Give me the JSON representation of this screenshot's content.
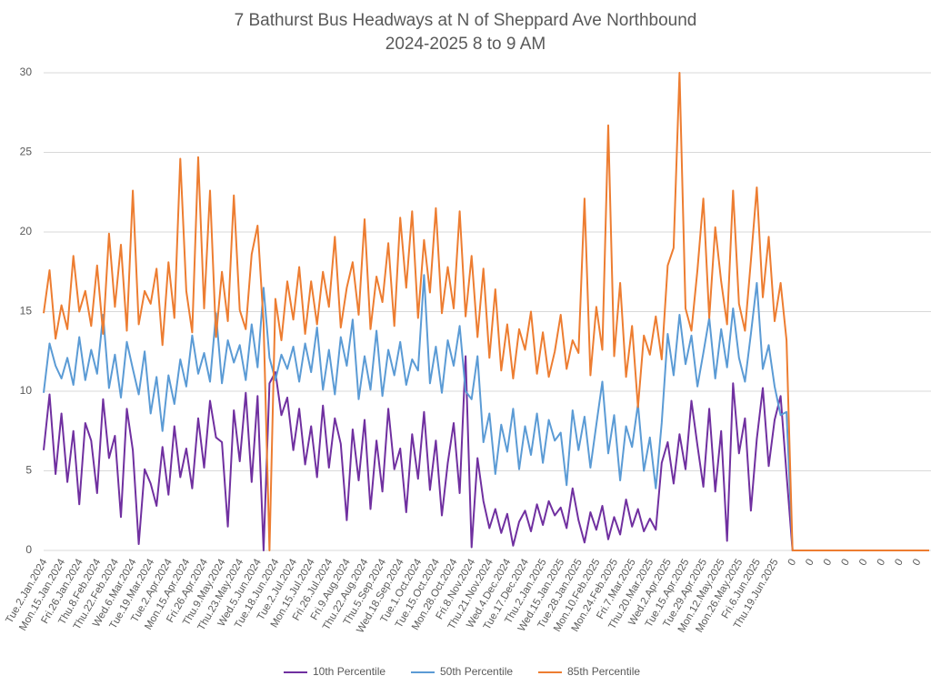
{
  "chart_data": {
    "type": "line",
    "title": "7 Bathurst Bus Headways at N of Sheppard Ave Northbound",
    "subtitle": "2024-2025 8 to 9 AM",
    "categories": [
      "Tue.2.Jan.2024",
      null,
      null,
      "Mon.15.Jan.2024",
      null,
      null,
      "Fri.26.Jan.2024",
      null,
      null,
      "Thu.8.Feb.2024",
      null,
      null,
      "Thu.22.Feb.2024",
      null,
      null,
      "Wed.6.Mar.2024",
      null,
      null,
      "Tue.19.Mar.2024",
      null,
      null,
      "Tue.2.Apr.2024",
      null,
      null,
      "Mon.15.Apr.2024",
      null,
      null,
      "Fri.26.Apr.2024",
      null,
      null,
      "Thu.9.May.2024",
      null,
      null,
      "Thu.23.May.2024",
      null,
      null,
      "Wed.5.Jun.2024",
      null,
      null,
      "Tue.18.Jun.2024",
      null,
      null,
      "Tue.2.Jul.2024",
      null,
      null,
      "Mon.15.Jul.2024",
      null,
      null,
      "Fri.26.Jul.2024",
      null,
      null,
      "Fri.9.Aug.2024",
      null,
      null,
      "Thu.22.Aug.2024",
      null,
      null,
      "Thu.5.Sep.2024",
      null,
      null,
      "Wed.18.Sep.2024",
      null,
      null,
      "Tue.1.Oct.2024",
      null,
      null,
      "Tue.15.Oct.2024",
      null,
      null,
      "Mon.28.Oct.2024",
      null,
      null,
      "Fri.8.Nov.2024",
      null,
      null,
      "Thu.21.Nov.2024",
      null,
      null,
      "Wed.4.Dec.2024",
      null,
      null,
      "Tue.17.Dec.2024",
      null,
      null,
      "Thu.2.Jan.2025",
      null,
      null,
      "Wed.15.Jan.2025",
      null,
      null,
      "Tue.28.Jan.2025",
      null,
      null,
      "Mon.10.Feb.2025",
      null,
      null,
      "Mon.24.Feb.2025",
      null,
      null,
      "Fri.7.Mar.2025",
      null,
      null,
      "Thu.20.Mar.2025",
      null,
      null,
      "Wed.2.Apr.2025",
      null,
      null,
      "Tue.15.Apr.2025",
      null,
      null,
      "Tue.29.Apr.2025",
      null,
      null,
      "Mon.12.May.2025",
      null,
      null,
      "Mon.26.May.2025",
      null,
      null,
      "Fri.6.Jun.2025",
      null,
      null,
      "Thu.19.Jun.2025",
      null,
      null,
      "0",
      null,
      null,
      "0",
      null,
      null,
      "0",
      null,
      null,
      "0",
      null,
      null,
      "0",
      null,
      null,
      "0",
      null,
      null,
      "0",
      null,
      null,
      "0",
      null,
      null
    ],
    "series": [
      {
        "name": "10th Percentile",
        "color": "#7030a0",
        "values": [
          6.3,
          9.8,
          4.8,
          8.6,
          4.3,
          7.5,
          2.9,
          8.0,
          6.9,
          3.6,
          9.5,
          5.8,
          7.2,
          2.1,
          8.9,
          6.3,
          0.4,
          5.1,
          4.2,
          2.8,
          6.5,
          3.5,
          7.8,
          4.6,
          6.4,
          3.9,
          8.3,
          5.2,
          9.4,
          7.1,
          6.8,
          1.5,
          8.8,
          5.6,
          9.9,
          4.3,
          9.7,
          0,
          10.5,
          11.2,
          8.5,
          9.6,
          6.3,
          8.9,
          5.4,
          7.8,
          4.6,
          9.1,
          5.2,
          8.3,
          6.7,
          1.9,
          7.6,
          4.4,
          8.2,
          2.6,
          6.9,
          3.7,
          8.9,
          5.1,
          6.4,
          2.4,
          7.3,
          4.5,
          8.7,
          3.8,
          6.9,
          2.2,
          5.5,
          8.0,
          3.6,
          12.2,
          0.2,
          5.8,
          3.1,
          1.4,
          2.6,
          1.1,
          2.3,
          0.3,
          1.8,
          2.5,
          1.2,
          2.9,
          1.6,
          3.1,
          2.2,
          2.7,
          1.4,
          3.9,
          1.9,
          0.5,
          2.4,
          1.3,
          2.8,
          0.7,
          2.1,
          1.0,
          3.2,
          1.5,
          2.6,
          1.2,
          2.0,
          1.3,
          5.5,
          6.8,
          4.2,
          7.3,
          5.1,
          9.4,
          6.6,
          4.0,
          8.9,
          3.7,
          7.5,
          0.6,
          10.5,
          6.1,
          8.3,
          2.5,
          7.0,
          10.2,
          5.3,
          8.2,
          9.7,
          4.8,
          0,
          0,
          0,
          0,
          0,
          0,
          0,
          0,
          0,
          0,
          0,
          0,
          0,
          0,
          0,
          0,
          0,
          0,
          0,
          0,
          0,
          0,
          0,
          0
        ]
      },
      {
        "name": "50th Percentile",
        "color": "#5b9bd5",
        "values": [
          9.9,
          13.0,
          11.6,
          10.8,
          12.1,
          10.4,
          13.4,
          10.7,
          12.6,
          11.1,
          14.8,
          10.2,
          12.3,
          9.6,
          13.1,
          11.4,
          9.8,
          12.5,
          8.6,
          10.9,
          7.5,
          11.0,
          9.2,
          12.0,
          10.3,
          13.5,
          11.1,
          12.4,
          10.6,
          14.9,
          10.5,
          13.2,
          11.8,
          12.9,
          10.7,
          14.2,
          11.5,
          16.5,
          12.1,
          10.7,
          12.3,
          11.4,
          12.8,
          10.6,
          13.0,
          11.2,
          14.0,
          10.1,
          12.6,
          9.8,
          13.4,
          11.6,
          14.5,
          9.5,
          12.2,
          10.1,
          13.8,
          9.7,
          12.6,
          11.0,
          13.1,
          10.4,
          12.0,
          11.3,
          17.3,
          10.5,
          12.8,
          9.9,
          13.2,
          11.6,
          14.1,
          10.0,
          9.5,
          12.2,
          6.8,
          8.6,
          4.8,
          7.9,
          6.2,
          8.9,
          5.1,
          7.8,
          6.0,
          8.6,
          5.5,
          8.2,
          6.9,
          7.4,
          4.1,
          8.8,
          6.3,
          8.4,
          5.2,
          7.9,
          10.6,
          6.1,
          8.5,
          4.4,
          7.8,
          6.5,
          9.2,
          5.0,
          7.1,
          3.9,
          8.0,
          13.6,
          11.0,
          14.8,
          11.7,
          13.5,
          10.3,
          12.4,
          14.6,
          10.8,
          13.9,
          11.5,
          15.2,
          12.1,
          10.6,
          13.6,
          16.8,
          11.4,
          12.9,
          10.3,
          8.5,
          8.7,
          0,
          0,
          0,
          0,
          0,
          0,
          0,
          0,
          0,
          0,
          0,
          0,
          0,
          0,
          0,
          0,
          0,
          0,
          0,
          0,
          0,
          0,
          0,
          0
        ]
      },
      {
        "name": "85th Percentile",
        "color": "#ed7d31",
        "values": [
          14.9,
          17.6,
          13.3,
          15.4,
          13.9,
          18.5,
          15.0,
          16.3,
          14.1,
          17.9,
          13.6,
          19.9,
          15.3,
          19.2,
          13.8,
          22.6,
          14.2,
          16.3,
          15.5,
          17.7,
          12.9,
          18.1,
          14.6,
          24.6,
          16.3,
          13.7,
          24.7,
          15.2,
          22.6,
          13.4,
          17.5,
          14.4,
          22.3,
          15.1,
          13.9,
          18.6,
          20.4,
          14.3,
          0,
          15.8,
          13.2,
          16.9,
          14.5,
          17.8,
          13.6,
          16.9,
          14.2,
          17.5,
          15.3,
          19.7,
          14.0,
          16.5,
          18.1,
          14.8,
          20.8,
          13.9,
          17.2,
          15.6,
          19.3,
          14.1,
          20.9,
          16.5,
          21.3,
          14.6,
          19.5,
          16.2,
          21.5,
          14.9,
          17.8,
          15.2,
          21.3,
          14.7,
          18.5,
          13.4,
          17.7,
          12.1,
          16.4,
          11.3,
          14.2,
          10.8,
          13.9,
          12.6,
          15.0,
          11.1,
          13.7,
          10.9,
          12.5,
          14.8,
          11.4,
          13.2,
          12.4,
          22.1,
          11.0,
          15.3,
          12.6,
          26.7,
          12.2,
          16.8,
          10.9,
          14.1,
          9.0,
          13.5,
          12.3,
          14.7,
          12.0,
          17.9,
          19.0,
          30.0,
          15.2,
          13.8,
          17.6,
          22.1,
          14.6,
          20.3,
          16.9,
          14.2,
          22.6,
          15.5,
          13.8,
          18.2,
          22.8,
          15.9,
          19.7,
          14.4,
          16.8,
          13.2,
          0,
          0,
          0,
          0,
          0,
          0,
          0,
          0,
          0,
          0,
          0,
          0,
          0,
          0,
          0,
          0,
          0,
          0,
          0,
          0,
          0,
          0,
          0,
          0
        ]
      }
    ],
    "ylim": [
      0,
      30
    ],
    "yticks": [
      0,
      5,
      10,
      15,
      20,
      25,
      30
    ],
    "grid": true,
    "legend": "bottom"
  }
}
